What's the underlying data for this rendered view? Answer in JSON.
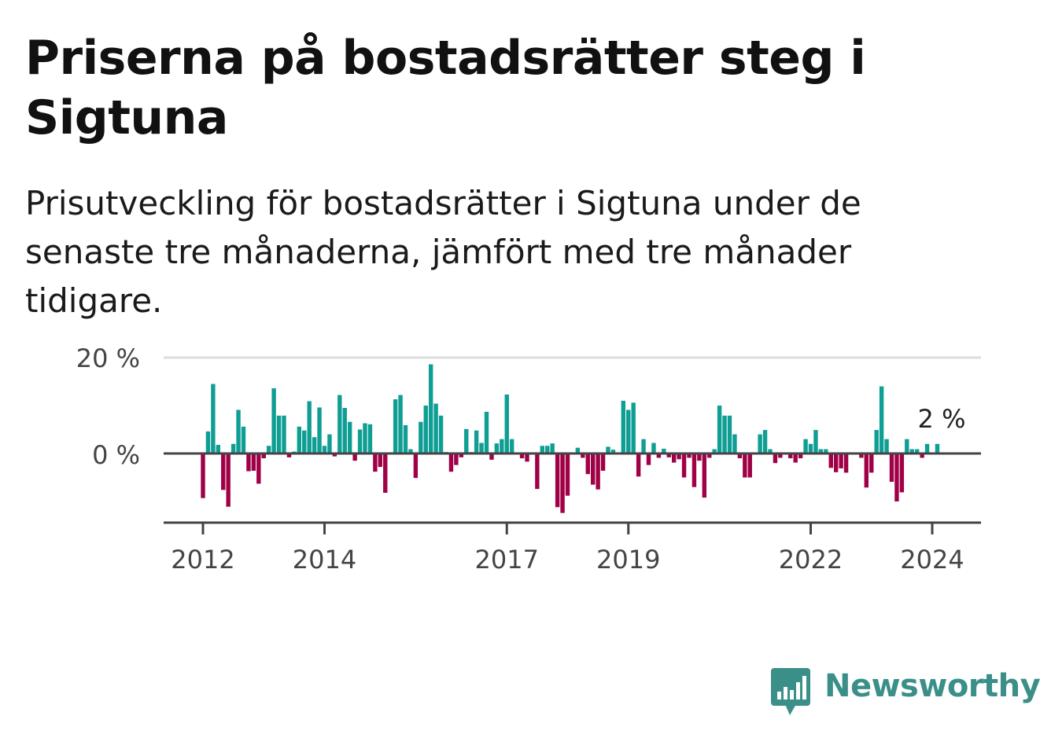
{
  "title": "Priserna på bostadsrätter steg i Sigtuna",
  "subtitle": "Prisutveckling för bostadsrätter i Sigtuna under de senaste tre månaderna, jämfört med tre månader tidigare.",
  "brand": {
    "name": "Newsworthy",
    "color": "#3a8f88"
  },
  "colors": {
    "positive": "#0f9e94",
    "negative": "#a00046",
    "zero_line": "#444444",
    "grid": "#dddddd"
  },
  "chart_data": {
    "type": "bar",
    "ylim": [
      -14,
      20
    ],
    "yticks": [
      0,
      20
    ],
    "ytick_labels": [
      "0 %",
      "20 %"
    ],
    "xtick_labels": [
      {
        "label": "2012",
        "index": 0
      },
      {
        "label": "2014",
        "index": 24
      },
      {
        "label": "2017",
        "index": 60
      },
      {
        "label": "2019",
        "index": 84
      },
      {
        "label": "2022",
        "index": 120
      },
      {
        "label": "2024",
        "index": 144
      }
    ],
    "last_value_label": "2 %",
    "values": [
      -9.3,
      4.6,
      14.5,
      1.8,
      -7.6,
      -11.1,
      2.0,
      9.1,
      5.6,
      -3.7,
      -3.6,
      -6.3,
      -1.0,
      1.6,
      13.6,
      7.9,
      7.9,
      -0.8,
      0.4,
      5.6,
      4.8,
      10.9,
      3.4,
      9.6,
      1.6,
      4.0,
      -0.6,
      12.2,
      9.5,
      6.6,
      -1.5,
      5.0,
      6.3,
      6.1,
      -3.8,
      -2.8,
      -8.2,
      0.1,
      11.3,
      12.2,
      5.9,
      0.9,
      -5.1,
      6.6,
      10.0,
      18.6,
      10.4,
      7.9,
      0.3,
      -3.8,
      -2.4,
      -0.8,
      5.1,
      0.3,
      4.8,
      2.2,
      8.7,
      -1.3,
      2.1,
      3.0,
      12.3,
      3.0,
      0.1,
      -1.0,
      -1.7,
      0.1,
      -7.4,
      1.6,
      1.6,
      2.1,
      -11.2,
      -12.4,
      -8.8,
      0.2,
      1.2,
      -0.9,
      -4.3,
      -6.5,
      -7.5,
      -3.6,
      1.4,
      0.8,
      0.2,
      11.0,
      9.1,
      10.6,
      -4.8,
      3.0,
      -2.4,
      2.2,
      -0.9,
      1.0,
      -0.8,
      -1.9,
      -1.2,
      -5.0,
      -0.9,
      -7.0,
      -1.5,
      -9.2,
      -0.9,
      0.9,
      10.0,
      7.9,
      7.9,
      4.0,
      -1.0,
      -5.0,
      -5.0,
      0.2,
      4.0,
      4.9,
      0.9,
      -2.0,
      -0.9,
      0.1,
      -1.0,
      -1.9,
      -1.0,
      3.0,
      2.0,
      4.9,
      0.9,
      0.9,
      -3.0,
      -3.9,
      -3.1,
      -4.0,
      0.1,
      0.1,
      -0.9,
      -7.1,
      -4.0,
      4.9,
      14.0,
      3.0,
      -5.9,
      -10.0,
      -8.1,
      3.0,
      0.9,
      0.9,
      -0.9,
      2.0,
      0.1,
      2.0
    ]
  }
}
